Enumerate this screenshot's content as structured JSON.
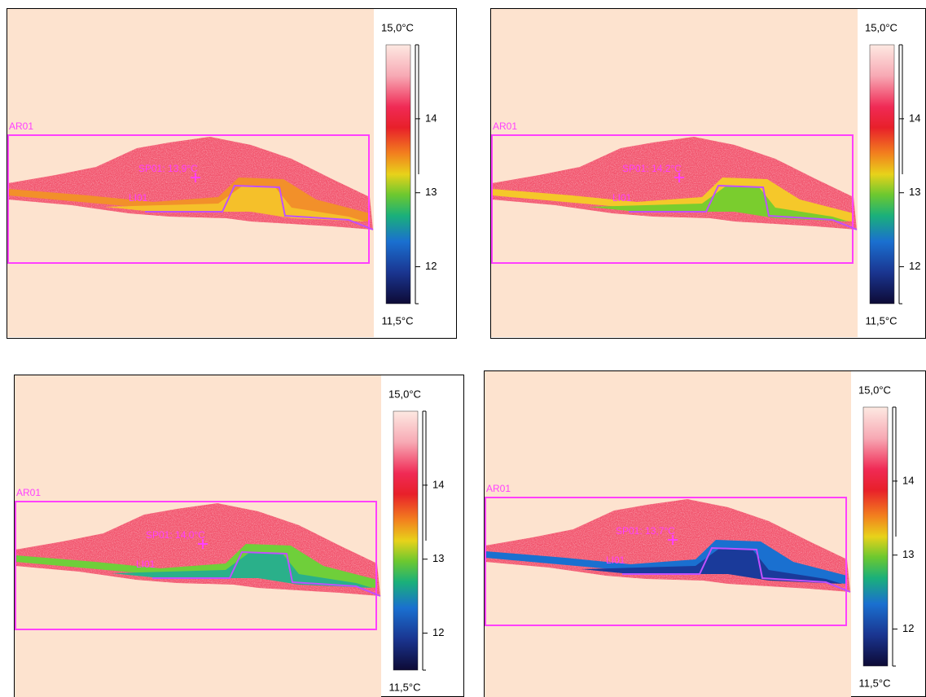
{
  "panels": [
    {
      "area_label": "AR01",
      "spot_label": "SP01: 13,9°C",
      "line_label": "LI01",
      "scale": {
        "max": {
          "value": 15,
          "label": "15,0°C"
        },
        "min": {
          "value": 11.5,
          "label": "11,5°C"
        },
        "ticks": [
          14,
          13,
          12
        ]
      }
    },
    {
      "area_label": "AR01",
      "spot_label": "SP01: 14,2°C",
      "line_label": "LI01",
      "scale": {
        "max": {
          "value": 15,
          "label": "15,0°C"
        },
        "min": {
          "value": 11.5,
          "label": "11,5°C"
        },
        "ticks": [
          14,
          13,
          12
        ]
      }
    },
    {
      "area_label": "AR01",
      "spot_label": "SP01: 14,0°C",
      "line_label": "LI01",
      "scale": {
        "max": {
          "value": 15,
          "label": "15,0°C"
        },
        "min": {
          "value": 11.5,
          "label": "11,5°C"
        },
        "ticks": [
          14,
          13,
          12
        ]
      }
    },
    {
      "area_label": "AR01",
      "spot_label": "SP01: 13,7°C",
      "line_label": "LI01",
      "scale": {
        "max": {
          "value": 15,
          "label": "15,0°C"
        },
        "min": {
          "value": 11.5,
          "label": "11,5°C"
        },
        "ticks": [
          14,
          13,
          12
        ]
      }
    }
  ]
}
